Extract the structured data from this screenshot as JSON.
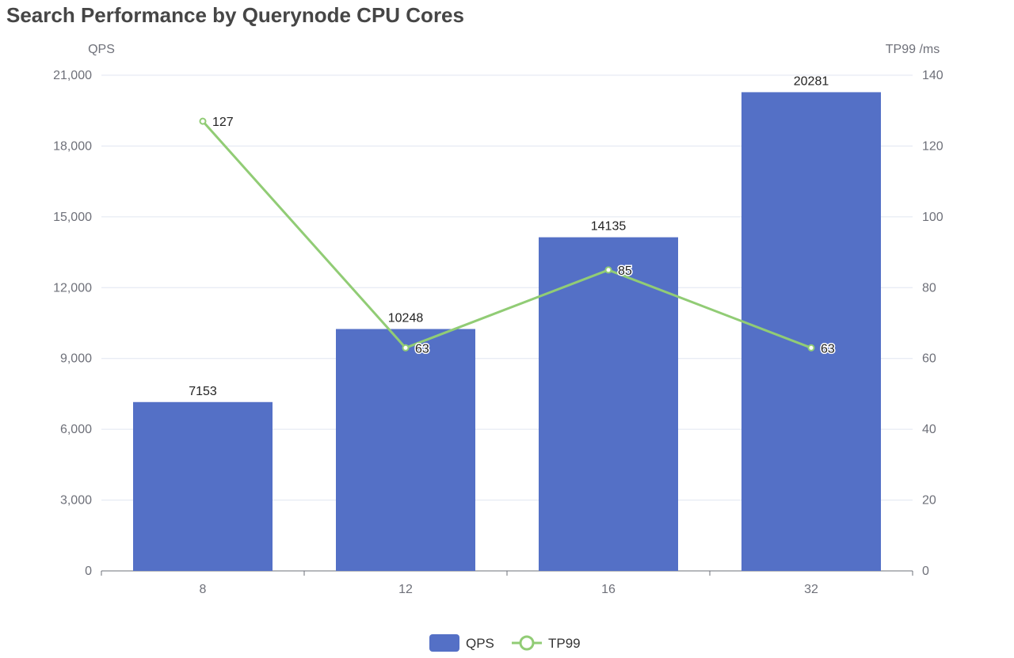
{
  "chart_data": {
    "type": "bar+line",
    "title": "Search Performance by Querynode CPU Cores",
    "categories": [
      "8",
      "12",
      "16",
      "32"
    ],
    "series": [
      {
        "name": "QPS",
        "type": "bar",
        "axis": "left",
        "values": [
          7153,
          10248,
          14135,
          20281
        ],
        "color": "#5470c6"
      },
      {
        "name": "TP99",
        "type": "line",
        "axis": "right",
        "values": [
          127,
          63,
          85,
          63
        ],
        "color": "#91cc75"
      }
    ],
    "y_left": {
      "label": "QPS",
      "range": [
        0,
        21000
      ],
      "ticks": [
        0,
        3000,
        6000,
        9000,
        12000,
        15000,
        18000,
        21000
      ],
      "tick_labels": [
        "0",
        "3,000",
        "6,000",
        "9,000",
        "12,000",
        "15,000",
        "18,000",
        "21,000"
      ]
    },
    "y_right": {
      "label": "TP99 /ms",
      "range": [
        0,
        140
      ],
      "ticks": [
        0,
        20,
        40,
        60,
        80,
        100,
        120,
        140
      ]
    },
    "grid": true,
    "legend": "bottom-center"
  }
}
